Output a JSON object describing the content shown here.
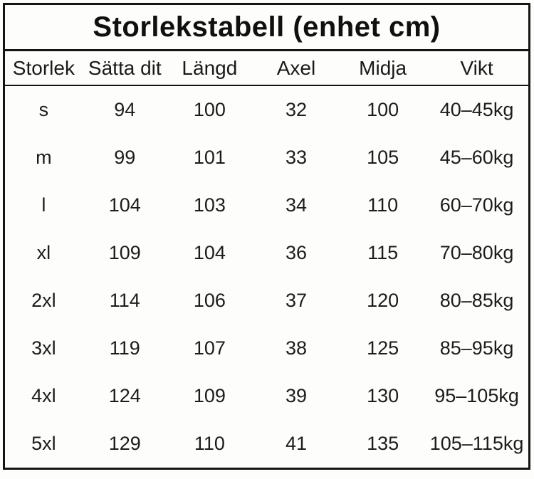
{
  "chart_data": {
    "type": "table",
    "title": "Storlekstabell (enhet cm)",
    "columns": [
      "Storlek",
      "Sätta dit",
      "Längd",
      "Axel",
      "Midja",
      "Vikt"
    ],
    "rows": [
      [
        "s",
        "94",
        "100",
        "32",
        "100",
        "40–45kg"
      ],
      [
        "m",
        "99",
        "101",
        "33",
        "105",
        "45–60kg"
      ],
      [
        "l",
        "104",
        "103",
        "34",
        "110",
        "60–70kg"
      ],
      [
        "xl",
        "109",
        "104",
        "36",
        "115",
        "70–80kg"
      ],
      [
        "2xl",
        "114",
        "106",
        "37",
        "120",
        "80–85kg"
      ],
      [
        "3xl",
        "119",
        "107",
        "38",
        "125",
        "85–95kg"
      ],
      [
        "4xl",
        "124",
        "109",
        "39",
        "130",
        "95–105kg"
      ],
      [
        "5xl",
        "129",
        "110",
        "41",
        "135",
        "105–115kg"
      ]
    ]
  },
  "colors": {
    "border": "#141414",
    "text": "#1c1c1c",
    "background": "#fdfdfb"
  }
}
